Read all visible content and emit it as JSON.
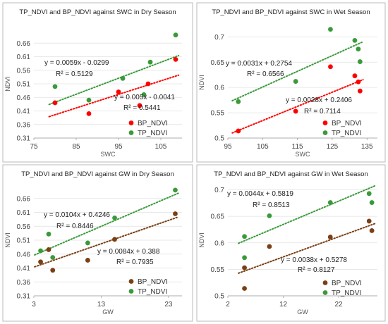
{
  "chart_data": [
    {
      "type": "scatter",
      "title": "TP_NDVI and BP_NDVI against SWC in Dry Season",
      "xlabel": "SWC",
      "ylabel": "NDVI",
      "xlim": [
        75,
        110
      ],
      "ylim": [
        0.31,
        0.71
      ],
      "xticks": [
        "75",
        "85",
        "95",
        "105"
      ],
      "yticks": [
        "0.31",
        "0.36",
        "0.41",
        "0.46",
        "0.51",
        "0.56",
        "0.61",
        "0.66"
      ],
      "series": [
        {
          "name": "BP_NDVI",
          "color": "#ff0000",
          "x": [
            80,
            88,
            95,
            100,
            102,
            108.5
          ],
          "y": [
            0.44,
            0.4,
            0.48,
            0.43,
            0.51,
            0.6
          ],
          "trendline": {
            "slope": 0.005,
            "intercept": -0.0041
          }
        },
        {
          "name": "TP_NDVI",
          "color": "#3a9a3a",
          "x": [
            80,
            88,
            96,
            101,
            102.5,
            108.5
          ],
          "y": [
            0.5,
            0.45,
            0.53,
            0.47,
            0.59,
            0.69
          ],
          "trendline": {
            "slope": 0.0059,
            "intercept": -0.0299
          }
        }
      ],
      "annotations": [
        "y = 0.0059x - 0.0299",
        "R² = 0.5129",
        "y = 0.005x - 0.0041",
        "R² = 0.5441"
      ],
      "legend": "bottom-right"
    },
    {
      "type": "scatter",
      "title": "TP_NDVI and BP_NDVI against SWC in Wet Season",
      "xlabel": "SWC",
      "ylabel": "NDVI",
      "xlim": [
        95,
        138
      ],
      "ylim": [
        0.5,
        0.72
      ],
      "xticks": [
        "95",
        "105",
        "115",
        "125",
        "135"
      ],
      "yticks": [
        "0.5",
        "0.55",
        "0.6",
        "0.65",
        "0.7"
      ],
      "series": [
        {
          "name": "BP_NDVI",
          "color": "#ff0000",
          "x": [
            98,
            114.5,
            124.5,
            131.5,
            132.5,
            133
          ],
          "y": [
            0.514,
            0.553,
            0.641,
            0.623,
            0.611,
            0.593
          ],
          "trendline": {
            "slope": 0.0028,
            "intercept": 0.2406
          }
        },
        {
          "name": "TP_NDVI",
          "color": "#3a9a3a",
          "x": [
            98,
            114.5,
            124.5,
            131.5,
            132.5,
            133
          ],
          "y": [
            0.572,
            0.612,
            0.715,
            0.693,
            0.676,
            0.651
          ],
          "trendline": {
            "slope": 0.0031,
            "intercept": 0.2754
          }
        }
      ],
      "annotations": [
        "y = 0.0031x + 0.2754",
        "R² = 0.6566",
        "y = 0.0028x + 0.2406",
        "R² = 0.7114"
      ],
      "legend": "bottom-right"
    },
    {
      "type": "scatter",
      "title": "TP_NDVI and BP_NDVI against GW in Dry Season",
      "xlabel": "GW",
      "ylabel": "NDVI",
      "xlim": [
        3,
        25
      ],
      "ylim": [
        0.31,
        0.71
      ],
      "xticks": [
        "3",
        "13",
        "23"
      ],
      "yticks": [
        "0.31",
        "0.36",
        "0.41",
        "0.46",
        "0.51",
        "0.56",
        "0.61",
        "0.66"
      ],
      "series": [
        {
          "name": "BP_NDVI",
          "color": "#7b3f14",
          "x": [
            4.0,
            5.2,
            5.8,
            11.0,
            15.0,
            24.0
          ],
          "y": [
            0.432,
            0.476,
            0.402,
            0.438,
            0.513,
            0.605
          ],
          "trendline": {
            "slope": 0.0084,
            "intercept": 0.388
          }
        },
        {
          "name": "TP_NDVI",
          "color": "#3a9a3a",
          "x": [
            4.0,
            5.2,
            5.8,
            11.0,
            15.0,
            24.0
          ],
          "y": [
            0.472,
            0.532,
            0.448,
            0.5,
            0.59,
            0.69
          ],
          "trendline": {
            "slope": 0.0104,
            "intercept": 0.4246
          }
        }
      ],
      "annotations": [
        "y = 0.0104x + 0.4246",
        "R² = 0.8446",
        "y = 0.0084x + 0.388",
        "R² = 0.7935"
      ],
      "legend": "bottom-right"
    },
    {
      "type": "scatter",
      "title": "TP_NDVI and BP_NDVI against GW in Wet Season",
      "xlabel": "GW",
      "ylabel": "NDVI",
      "xlim": [
        2,
        29
      ],
      "ylim": [
        0.5,
        0.71
      ],
      "xticks": [
        "2",
        "12",
        "22"
      ],
      "yticks": [
        "0.5",
        "0.55",
        "0.6",
        "0.65",
        "0.7"
      ],
      "series": [
        {
          "name": "BP_NDVI",
          "color": "#7b3f14",
          "x": [
            5.0,
            5.0,
            9.5,
            20.5,
            27.5,
            28.0
          ],
          "y": [
            0.514,
            0.553,
            0.593,
            0.611,
            0.641,
            0.623
          ],
          "trendline": {
            "slope": 0.0038,
            "intercept": 0.5278
          }
        },
        {
          "name": "TP_NDVI",
          "color": "#3a9a3a",
          "x": [
            5.0,
            5.0,
            9.5,
            20.5,
            27.5,
            28.0
          ],
          "y": [
            0.572,
            0.612,
            0.651,
            0.676,
            0.693,
            0.676
          ],
          "trendline": {
            "slope": 0.0044,
            "intercept": 0.5819
          }
        }
      ],
      "annotations": [
        "y = 0.0044x + 0.5819",
        "R² = 0.8513",
        "y = 0.0038x + 0.5278",
        "R² = 0.8127"
      ],
      "legend": "bottom-right"
    }
  ]
}
